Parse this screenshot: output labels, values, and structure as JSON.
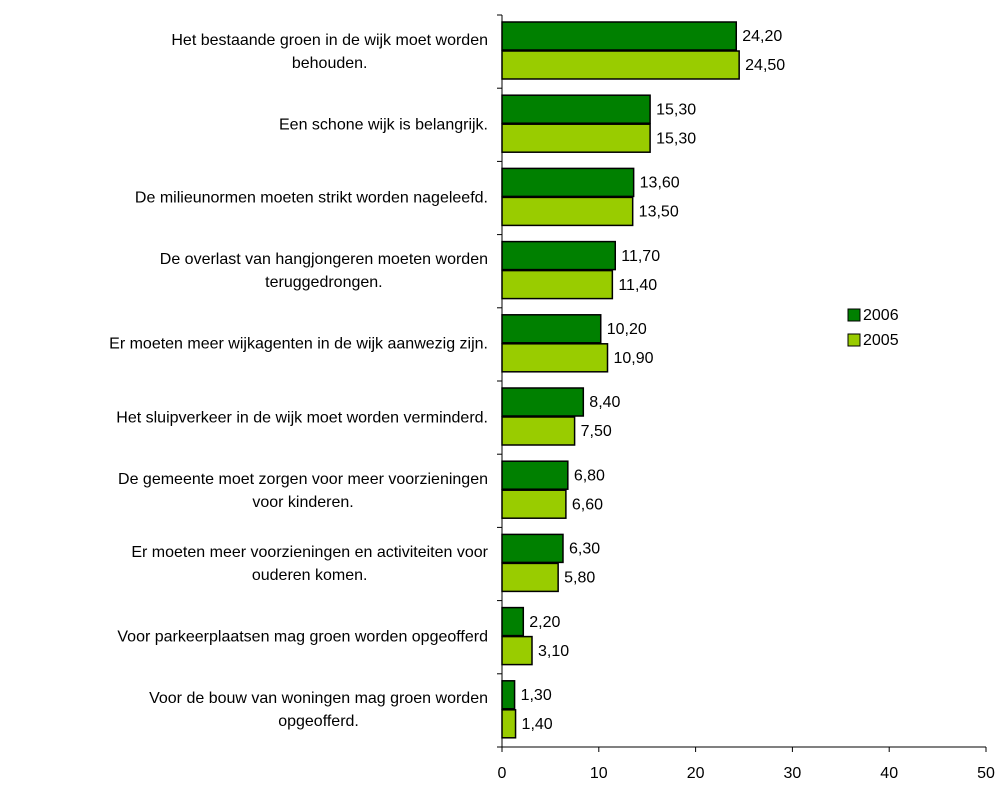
{
  "chart_data": {
    "type": "hbar",
    "categories": [
      "Het bestaande groen in de wijk moet worden\nbehouden.",
      "Een schone wijk is belangrijk.",
      "De milieunormen moeten strikt worden nageleefd.",
      "De overlast van hangjongeren moeten worden\nteruggedrongen.",
      "Er moeten meer wijkagenten in de wijk aanwezig zijn.",
      "Het sluipverkeer in de wijk moet worden verminderd.",
      "De gemeente moet zorgen voor meer voorzieningen\nvoor kinderen.",
      "Er moeten meer voorzieningen en activiteiten voor\nouderen komen.",
      "Voor parkeerplaatsen mag groen worden opgeofferd",
      "Voor de bouw van woningen mag groen worden\nopgeofferd."
    ],
    "series": [
      {
        "name": "2006",
        "color": "#008000",
        "values": [
          24.2,
          15.3,
          13.6,
          11.7,
          10.2,
          8.4,
          6.8,
          6.3,
          2.2,
          1.3
        ],
        "value_labels": [
          "24,20",
          "15,30",
          "13,60",
          "11,70",
          "10,20",
          "8,40",
          "6,80",
          "6,30",
          "2,20",
          "1,30"
        ]
      },
      {
        "name": "2005",
        "color": "#99cc00",
        "values": [
          24.5,
          15.3,
          13.5,
          11.4,
          10.9,
          7.5,
          6.6,
          5.8,
          3.1,
          1.4
        ],
        "value_labels": [
          "24,50",
          "15,30",
          "13,50",
          "11,40",
          "10,90",
          "7,50",
          "6,60",
          "5,80",
          "3,10",
          "1,40"
        ]
      }
    ],
    "xlim": [
      0,
      50
    ],
    "xticks": [
      0,
      10,
      20,
      30,
      40,
      50
    ],
    "legend": "right"
  }
}
